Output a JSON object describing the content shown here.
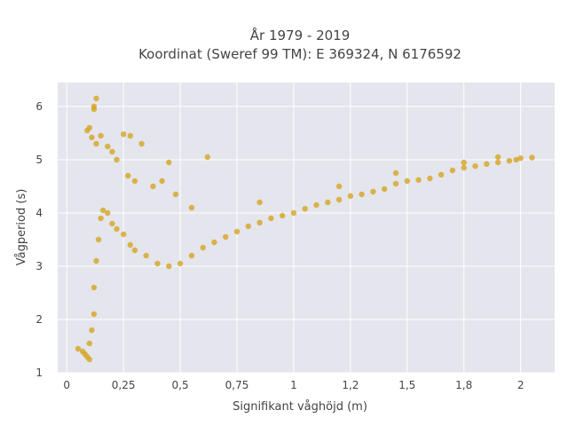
{
  "chart_data": {
    "type": "scatter",
    "title_line1": "År 1979 - 2019",
    "title_line2": "Koordinat (Sweref 99 TM): E 369324, N 6176592",
    "xlabel": "Signifikant våghöjd (m)",
    "ylabel": "Vågperiod (s)",
    "xlim": [
      -0.04,
      2.15
    ],
    "ylim": [
      1.0,
      6.45
    ],
    "x_ticks": [
      0,
      0.25,
      0.5,
      0.75,
      1,
      1.25,
      1.5,
      1.75,
      2
    ],
    "x_tick_labels": [
      "0",
      "0,25",
      "0,5",
      "0,75",
      "1",
      "1,2",
      "1,5",
      "1,8",
      "2"
    ],
    "y_ticks": [
      1,
      2,
      3,
      4,
      5,
      6
    ],
    "y_tick_labels": [
      "1",
      "2",
      "3",
      "4",
      "5",
      "6"
    ],
    "grid": true,
    "legend": "none",
    "colors": {
      "marker": "#D4A520",
      "plot_background": "#E5E5EE",
      "grid": "#ffffff",
      "text": "#444444"
    },
    "series": [
      {
        "marker_color": "#D4A520",
        "x": [
          0.05,
          0.07,
          0.08,
          0.09,
          0.1,
          0.1,
          0.11,
          0.12,
          0.12,
          0.13,
          0.14,
          0.15,
          0.16,
          0.18,
          0.2,
          0.22,
          0.25,
          0.28,
          0.3,
          0.35,
          0.4,
          0.45,
          0.5,
          0.55,
          0.6,
          0.65,
          0.7,
          0.75,
          0.8,
          0.85,
          0.9,
          0.95,
          1.0,
          1.05,
          1.1,
          1.15,
          1.2,
          1.25,
          1.3,
          1.35,
          1.4,
          1.45,
          1.5,
          1.55,
          1.6,
          1.65,
          1.7,
          1.75,
          1.8,
          1.85,
          1.9,
          1.95,
          2.0,
          2.05,
          0.09,
          0.1,
          0.11,
          0.12,
          0.13,
          0.12,
          0.13,
          0.15,
          0.2,
          0.18,
          0.22,
          0.25,
          0.28,
          0.27,
          0.33,
          0.42,
          0.62,
          0.45,
          0.3,
          0.38,
          0.48,
          0.55,
          0.85,
          1.2,
          1.45,
          1.75,
          1.9,
          1.98
        ],
        "y": [
          1.45,
          1.4,
          1.35,
          1.3,
          1.25,
          1.55,
          1.8,
          2.1,
          2.6,
          3.1,
          3.5,
          3.9,
          4.05,
          4.0,
          3.8,
          3.7,
          3.6,
          3.4,
          3.3,
          3.2,
          3.05,
          3.0,
          3.05,
          3.2,
          3.35,
          3.45,
          3.55,
          3.65,
          3.75,
          3.82,
          3.9,
          3.95,
          4.0,
          4.08,
          4.15,
          4.2,
          4.25,
          4.32,
          4.35,
          4.4,
          4.45,
          4.55,
          4.6,
          4.62,
          4.65,
          4.72,
          4.8,
          4.85,
          4.88,
          4.92,
          4.95,
          4.98,
          5.03,
          5.04,
          5.55,
          5.6,
          5.42,
          5.95,
          6.15,
          6.0,
          5.3,
          5.45,
          5.15,
          5.25,
          5.0,
          5.48,
          5.45,
          4.7,
          5.3,
          4.6,
          5.05,
          4.95,
          4.6,
          4.5,
          4.35,
          4.1,
          4.2,
          4.5,
          4.75,
          4.95,
          5.05,
          5.0
        ]
      }
    ]
  }
}
